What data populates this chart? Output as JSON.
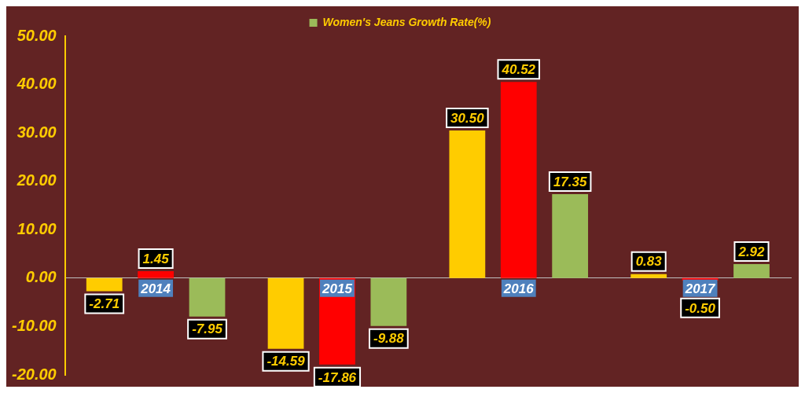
{
  "chart_data": {
    "type": "bar",
    "categories": [
      "2014",
      "2015",
      "2016",
      "2017"
    ],
    "series": [
      {
        "color": "#ffcc00",
        "values": [
          -2.71,
          -14.59,
          30.5,
          0.83
        ],
        "value_labels": [
          "-2.71",
          "-14.59",
          "30.50",
          "0.83"
        ]
      },
      {
        "color": "#ff0000",
        "values": [
          1.45,
          -17.86,
          40.52,
          -0.5
        ],
        "value_labels": [
          "1.45",
          "-17.86",
          "40.52",
          "-0.50"
        ]
      },
      {
        "name": "Women's Jeans Growth Rate(%)",
        "color": "#9bbb59",
        "values": [
          -7.95,
          -9.88,
          17.35,
          2.92
        ],
        "value_labels": [
          "-7.95",
          "-9.88",
          "17.35",
          "2.92"
        ]
      }
    ],
    "ylim": [
      -20,
      50
    ],
    "yticks": [
      {
        "value": -20,
        "label": "-20.00"
      },
      {
        "value": -10,
        "label": "-10.00"
      },
      {
        "value": 0,
        "label": "0.00"
      },
      {
        "value": 10,
        "label": "10.00"
      },
      {
        "value": 20,
        "label": "20.00"
      },
      {
        "value": 30,
        "label": "30.00"
      },
      {
        "value": 40,
        "label": "40.00"
      },
      {
        "value": 50,
        "label": "50.00"
      }
    ],
    "grid": false,
    "legend": "top"
  }
}
